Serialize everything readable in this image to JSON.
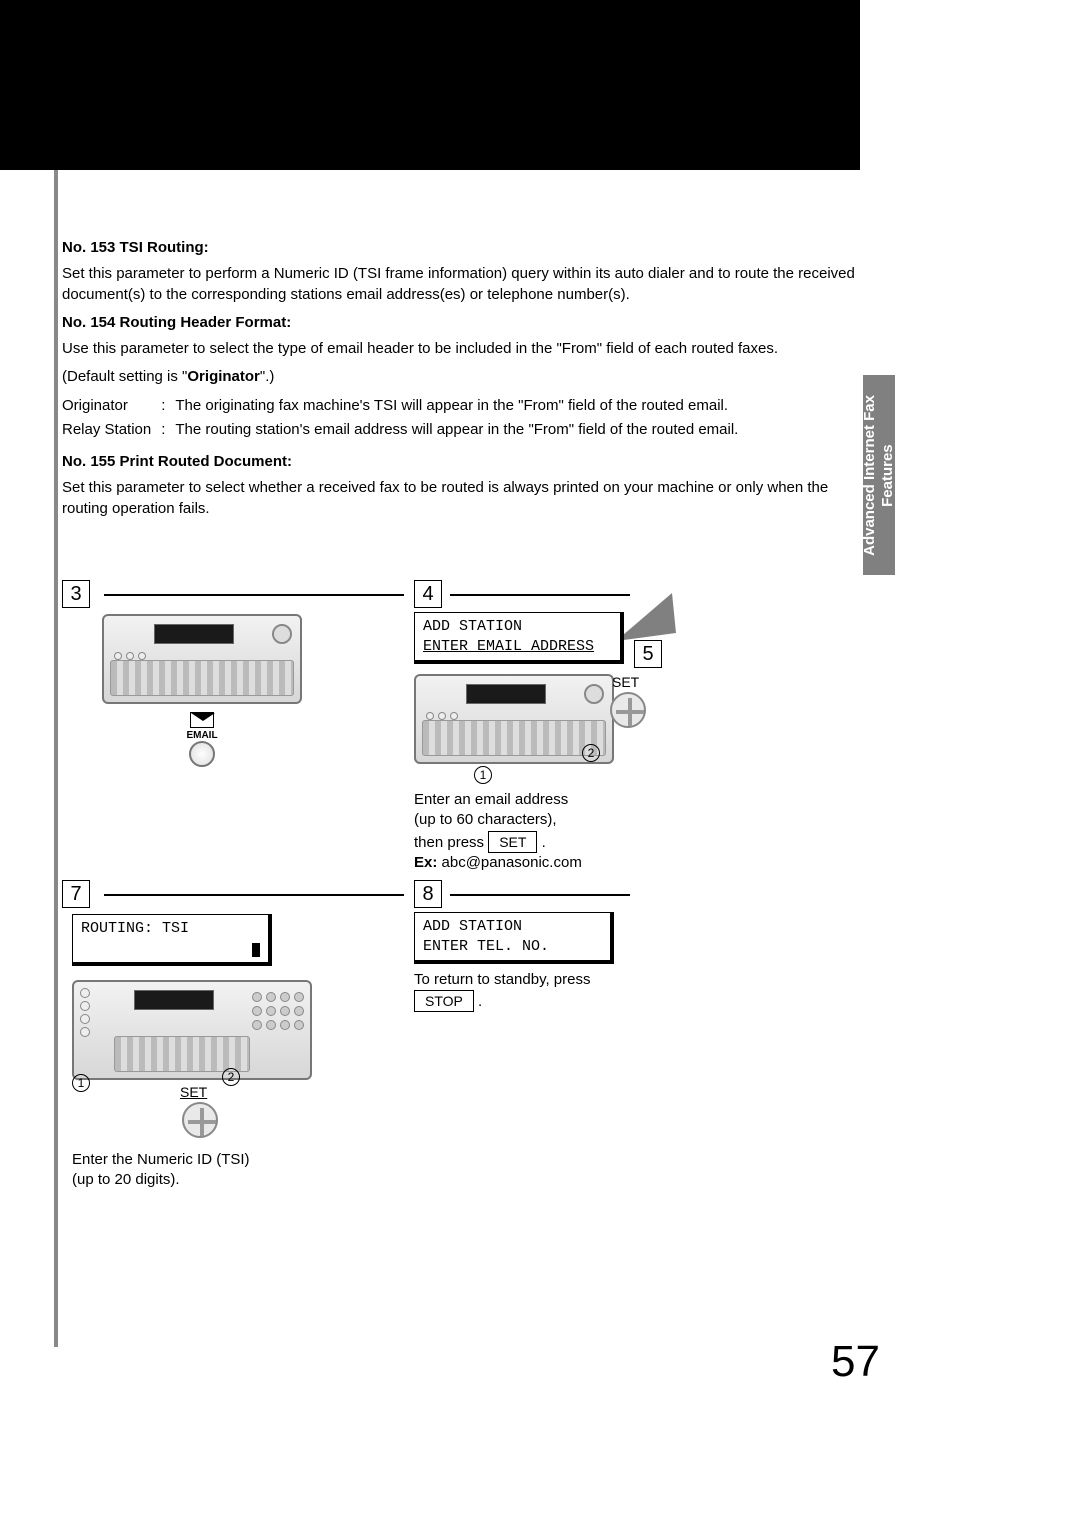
{
  "page_number": "57",
  "side_tab": "Advanced Internet Fax\nFeatures",
  "sections": {
    "s153": {
      "heading": "No. 153 TSI Routing:",
      "body": "Set this parameter to perform a Numeric ID (TSI frame information) query within its auto dialer and to route the received document(s) to the corresponding stations email address(es) or telephone number(s)."
    },
    "s154": {
      "heading": "No. 154 Routing Header Format:",
      "body": "Use this parameter to select the type of email header to be included in the \"From\" field of each routed faxes.",
      "default_prefix": "(Default setting is \"",
      "default_value": "Originator",
      "default_suffix": "\".)",
      "rows": [
        {
          "k": "Originator",
          "v": "The originating fax machine's TSI will appear in the \"From\" field of the routed email."
        },
        {
          "k": "Relay Station",
          "v": "The routing station's email address will appear in the \"From\" field of the routed email."
        }
      ]
    },
    "s155": {
      "heading": "No. 155 Print Routed Document:",
      "body": "Set this parameter to select whether a received fax to be routed is always printed on your machine or only when the routing operation fails."
    }
  },
  "steps": {
    "s3": {
      "num": "3",
      "email_label": "EMAIL"
    },
    "s4": {
      "num": "4",
      "lcd_l1": "ADD STATION",
      "lcd_l2": "ENTER EMAIL ADDRESS",
      "set_label": "SET",
      "note_l1": "Enter an email address",
      "note_l2": "(up to 60 characters),",
      "note_l3_a": "then press ",
      "note_l3_btn": "SET",
      "note_l3_b": ".",
      "ex_label": "Ex:",
      "ex_value": " abc@panasonic.com",
      "c1": "1",
      "c2": "2"
    },
    "s5": {
      "num": "5"
    },
    "s7": {
      "num": "7",
      "lcd_l1": "ROUTING: TSI",
      "set_label": "SET",
      "note_l1": "Enter the Numeric ID (TSI)",
      "note_l2": "(up to 20 digits).",
      "c1": "1",
      "c2": "2"
    },
    "s8": {
      "num": "8",
      "lcd_l1": "ADD STATION",
      "lcd_l2": "ENTER TEL. NO.",
      "note_l1": "To return to standby, press",
      "stop_btn": "STOP",
      "note_l1_end": "."
    }
  }
}
